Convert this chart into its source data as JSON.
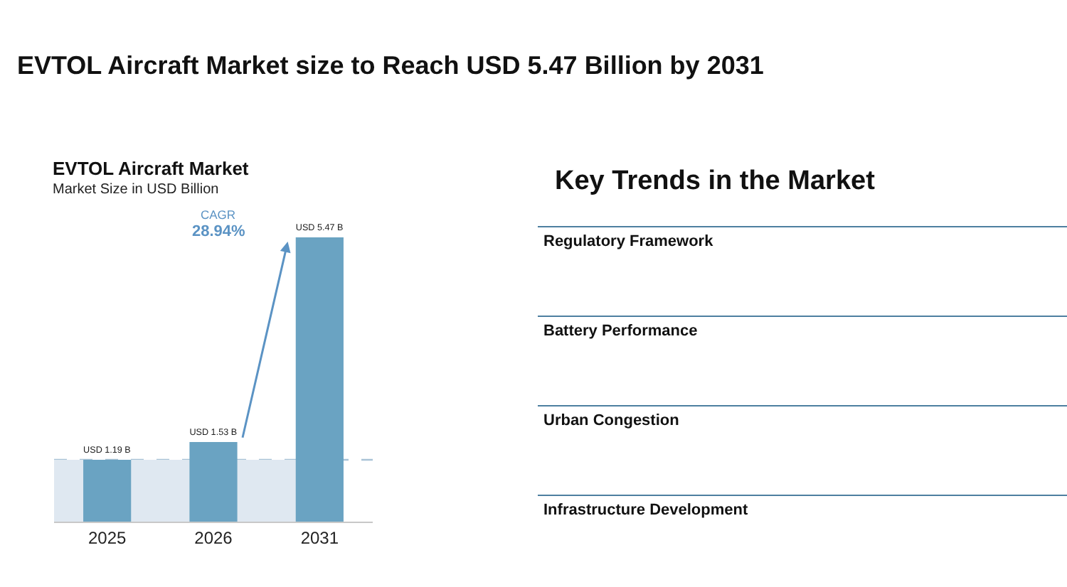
{
  "chart_data": [
    {
      "type": "other",
      "title": "EVTOL Aircraft Market size to Reach USD 5.47 Billion by 2031"
    },
    {
      "type": "bar",
      "title": "EVTOL Aircraft Market",
      "subtitle": "Market Size in USD Billion",
      "categories": [
        "2025",
        "2026",
        "2031"
      ],
      "values": [
        1.19,
        1.53,
        5.47
      ],
      "value_labels": [
        "USD 1.19 B",
        "USD 1.53 B",
        "USD 5.47 B"
      ],
      "color": "#6aa3c2",
      "tick_labels": "x",
      "annotations": [
        "CAGR",
        "28.94%"
      ],
      "ref_lines": [
        {
          "axis": "y",
          "value": 1.19,
          "color": "#a9c3d6",
          "line_style": "dashed"
        }
      ],
      "bands": [
        {
          "axis": "y",
          "from": 0,
          "to": 1.19,
          "color": "#dfe8f1"
        }
      ]
    },
    {
      "type": "other",
      "title": "Key Trends in the Market",
      "annotations": [
        "Regulatory Framework",
        "Battery Performance",
        "Urban Congestion",
        "Infrastructure Development"
      ]
    }
  ]
}
